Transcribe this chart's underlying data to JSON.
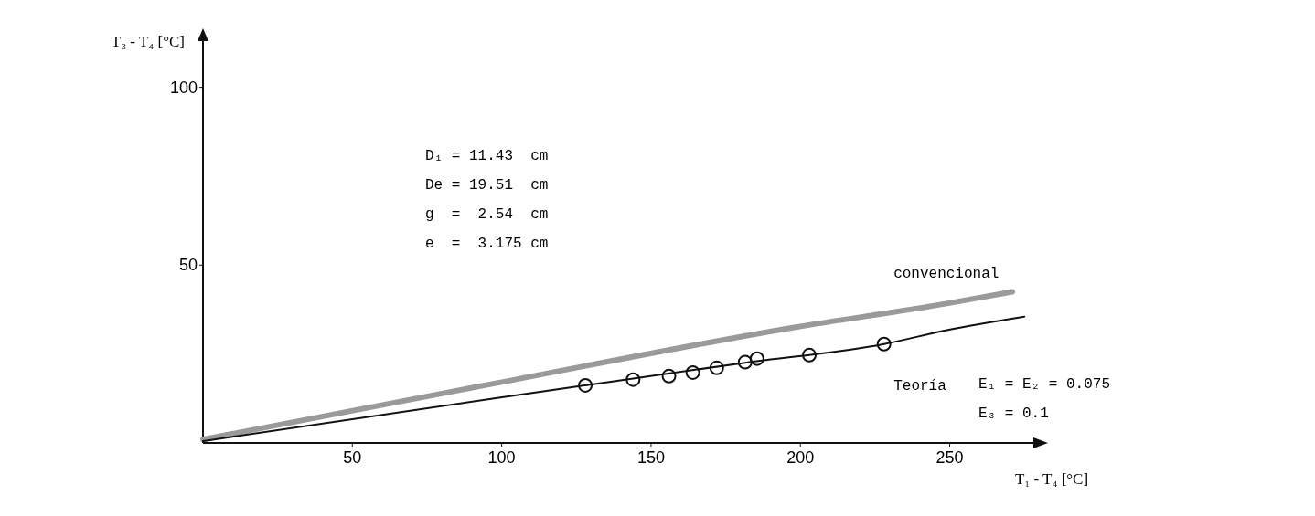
{
  "chart_data": {
    "type": "line",
    "xlabel": "T₁ - T₄ [°C]",
    "ylabel": "T₃ - T₄ [°C]",
    "xlim": [
      0,
      278
    ],
    "ylim": [
      0,
      113
    ],
    "xticks": [
      50,
      100,
      150,
      200,
      250
    ],
    "yticks": [
      50,
      100
    ],
    "grid": false,
    "series": [
      {
        "name": "convencional",
        "color": "#9a9a9a",
        "x": [
          0,
          98,
          198,
          249,
          271
        ],
        "values": [
          1,
          16.8,
          32.5,
          39.2,
          42.5
        ]
      },
      {
        "name": "Teoría",
        "color": "#111111",
        "x": [
          0,
          98,
          128,
          181,
          228,
          249,
          275
        ],
        "values": [
          0.5,
          12.6,
          16.2,
          22.5,
          27.8,
          31.7,
          35.5
        ]
      },
      {
        "type": "scatter",
        "marker": "circle",
        "color": "#111111",
        "x": [
          128,
          144,
          156,
          164,
          172,
          181.5,
          185.5,
          203,
          228
        ],
        "values": [
          16.2,
          17.8,
          18.8,
          19.8,
          21.1,
          22.7,
          23.7,
          24.7,
          27.8
        ]
      }
    ],
    "annotations": [
      "D₁ = 11.43  cm",
      "De = 19.51  cm",
      "g  =  2.54  cm",
      "e  =  3.175 cm",
      "E₁ = E₂ = 0.075",
      "E₃ = 0.1"
    ]
  }
}
